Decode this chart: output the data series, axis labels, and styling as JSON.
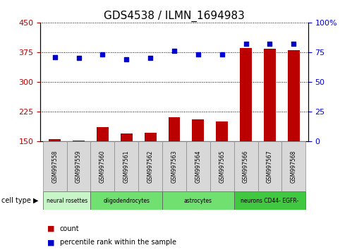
{
  "title": "GDS4538 / ILMN_1694983",
  "samples": [
    "GSM997558",
    "GSM997559",
    "GSM997560",
    "GSM997561",
    "GSM997562",
    "GSM997563",
    "GSM997564",
    "GSM997565",
    "GSM997566",
    "GSM997567",
    "GSM997568"
  ],
  "count_values": [
    155,
    152,
    185,
    170,
    172,
    210,
    205,
    200,
    385,
    383,
    380
  ],
  "percentile_values": [
    71,
    70,
    73,
    69,
    70,
    76,
    73,
    73,
    82,
    82,
    82
  ],
  "bar_color": "#bb0000",
  "dot_color": "#0000cc",
  "left_ylim": [
    150,
    450
  ],
  "right_ylim": [
    0,
    100
  ],
  "left_yticks": [
    150,
    225,
    300,
    375,
    450
  ],
  "right_yticks": [
    0,
    25,
    50,
    75,
    100
  ],
  "right_yticklabels": [
    "0",
    "25",
    "50",
    "75",
    "100%"
  ],
  "cell_types": [
    {
      "label": "neural rosettes",
      "start": 0,
      "end": 1,
      "color": "#c8f5c8"
    },
    {
      "label": "oligodendrocytes",
      "start": 2,
      "end": 4,
      "color": "#90e890"
    },
    {
      "label": "astrocytes",
      "start": 5,
      "end": 7,
      "color": "#90e890"
    },
    {
      "label": "neurons CD44- EGFR-",
      "start": 8,
      "end": 10,
      "color": "#50d050"
    }
  ],
  "legend_count_label": "count",
  "legend_pct_label": "percentile rank within the sample",
  "cell_type_label": "cell type",
  "sample_box_color": "#d8d8d8",
  "title_fontsize": 11
}
